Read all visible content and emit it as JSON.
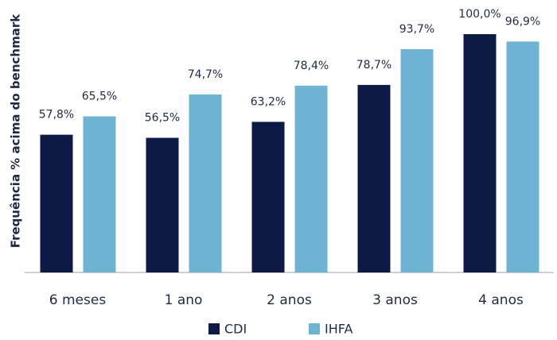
{
  "chart_data": {
    "type": "bar",
    "ylabel": "Frequência % acima do benchmark",
    "categories": [
      "6 meses",
      "1 ano",
      "2 anos",
      "3 anos",
      "4 anos"
    ],
    "series": [
      {
        "name": "CDI",
        "color": "#0d1a45",
        "values": [
          57.8,
          56.5,
          63.2,
          78.7,
          100.0
        ],
        "value_labels": [
          "57,8%",
          "56,5%",
          "63,2%",
          "78,7%",
          "100,0%"
        ]
      },
      {
        "name": "IHFA",
        "color": "#6fb3d3",
        "values": [
          65.5,
          74.7,
          78.4,
          93.7,
          96.9
        ],
        "value_labels": [
          "65,5%",
          "74,7%",
          "78,4%",
          "93,7%",
          "96,9%"
        ]
      }
    ],
    "ylim": [
      0,
      100
    ]
  }
}
